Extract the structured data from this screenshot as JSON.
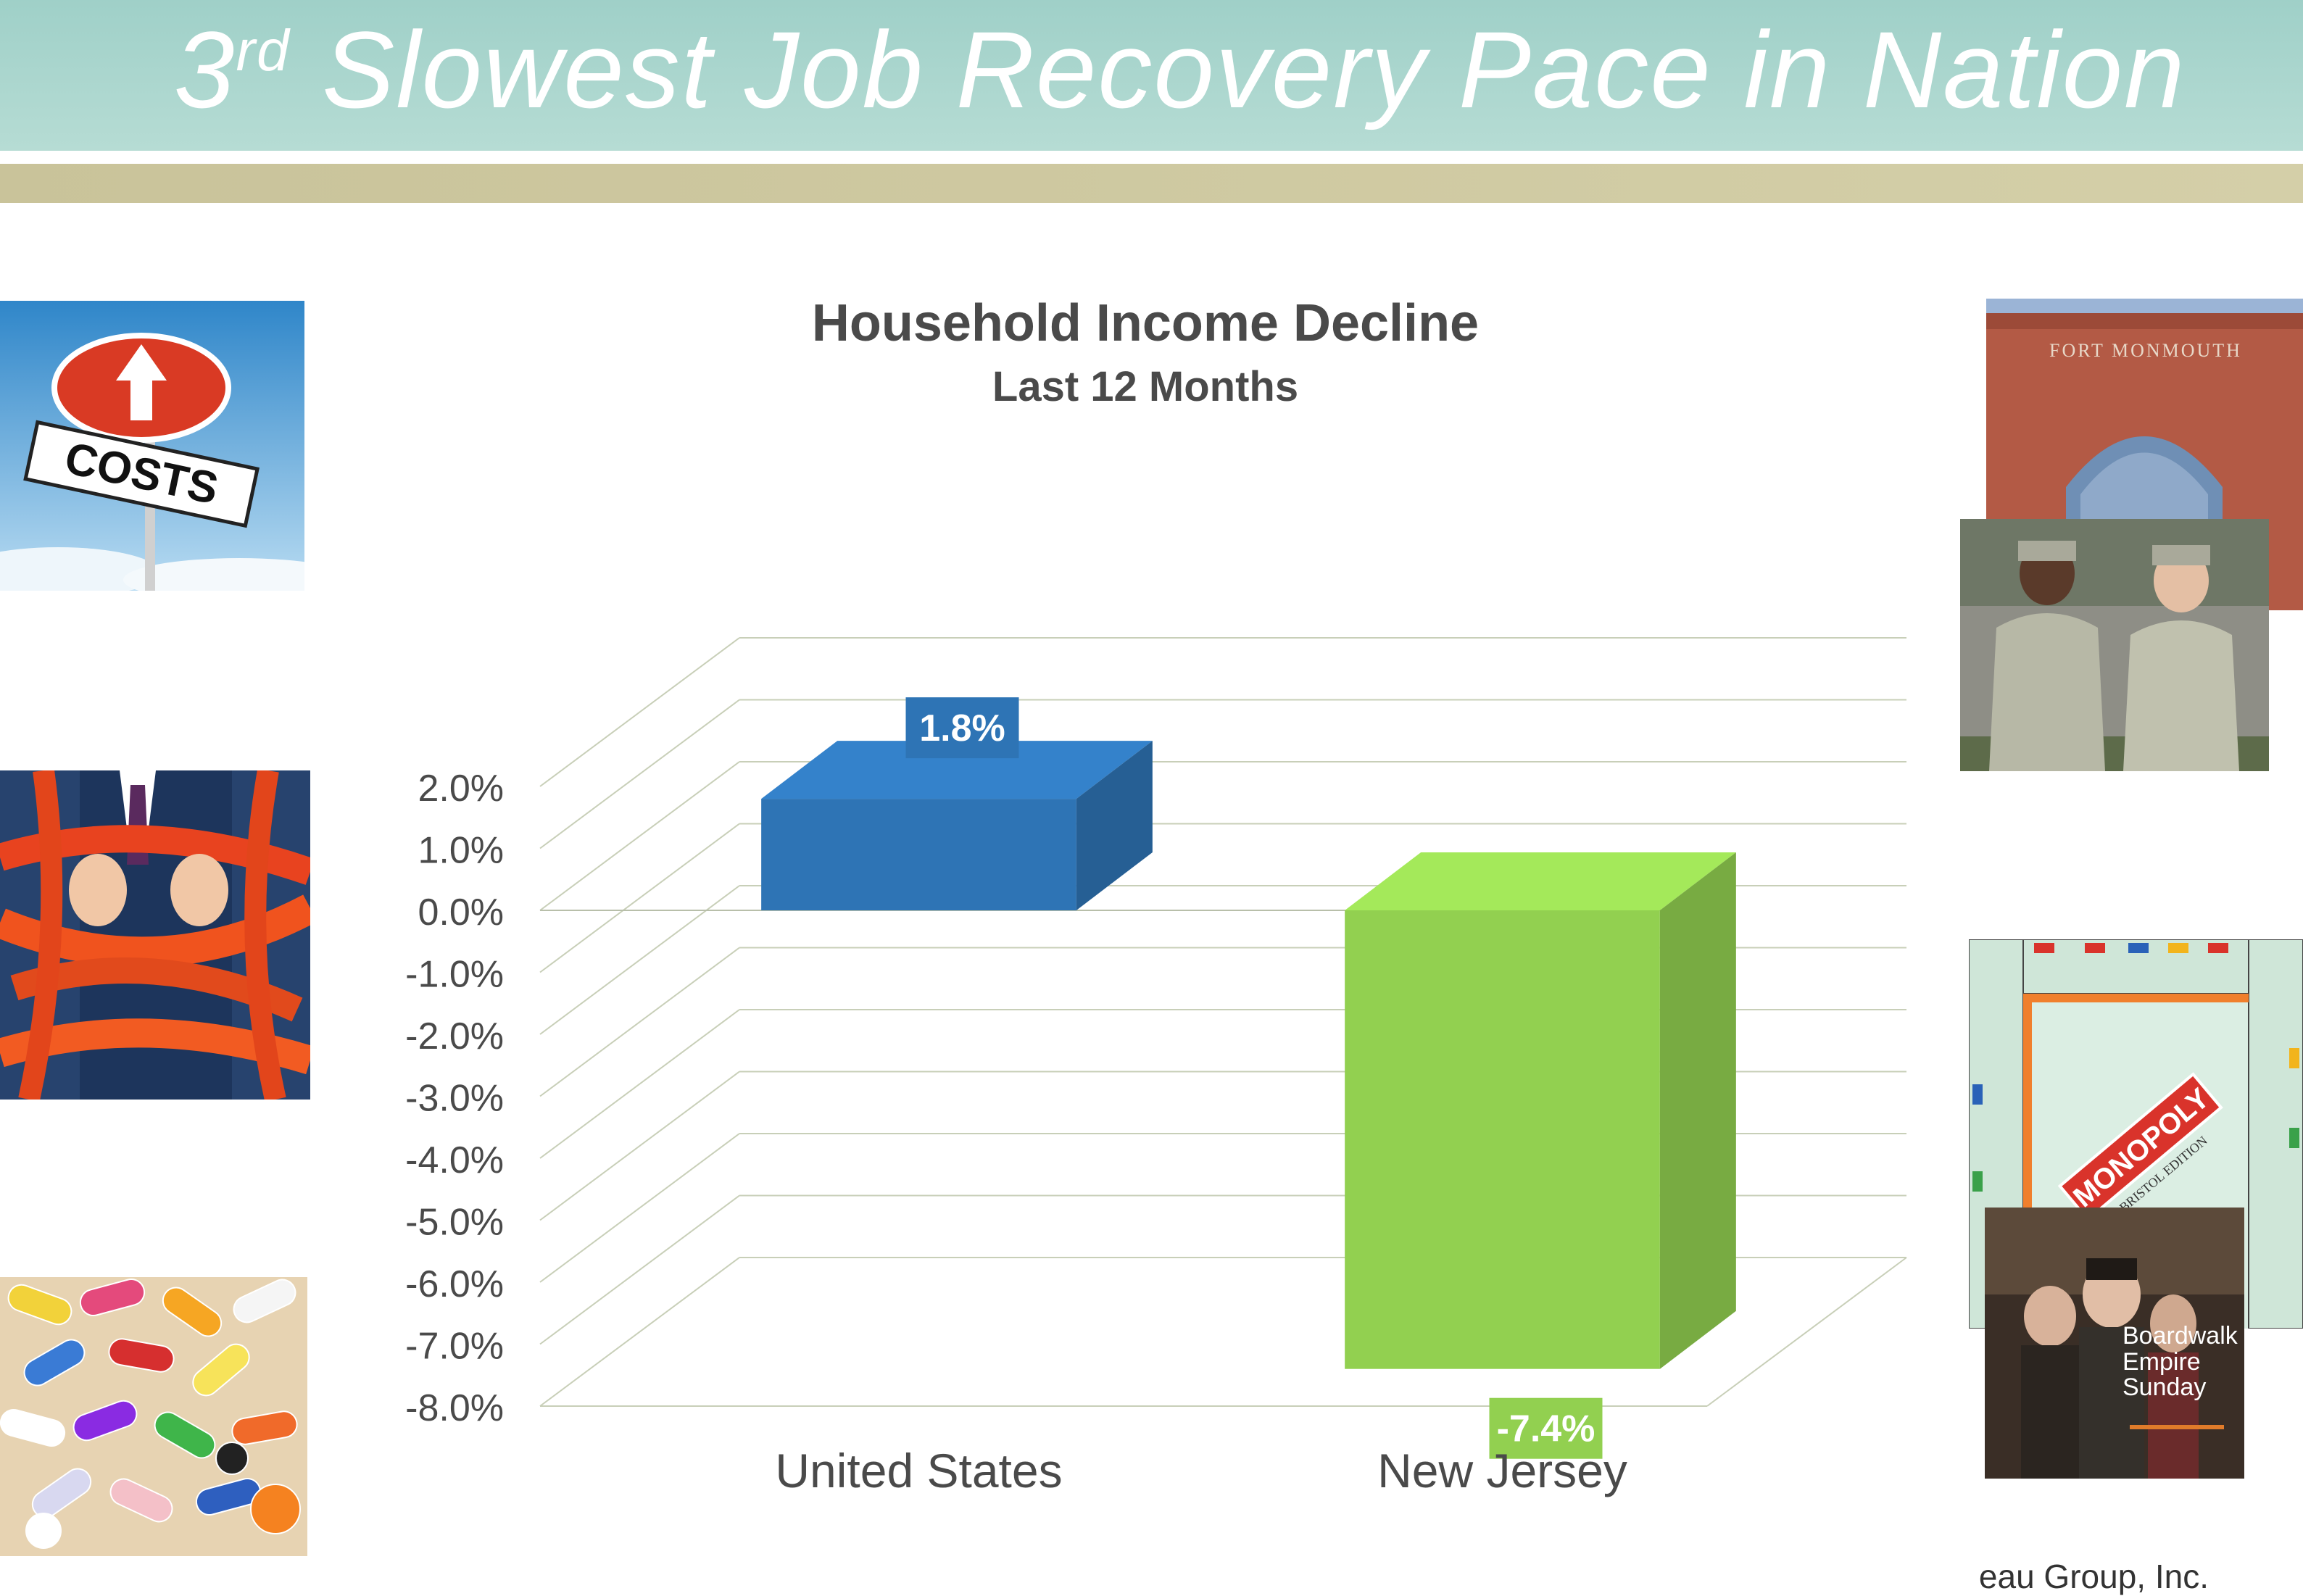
{
  "header": {
    "title_prefix": "3",
    "title_superscript": "rd",
    "title_rest": " Slowest Job Recovery Pace in Nation",
    "colors": {
      "banner": "#b1d9d2",
      "bar": "#cfc9a2"
    }
  },
  "photos": {
    "costs_sign_text": "COSTS",
    "fort_sign_text": "FORT MONMOUTH",
    "game_text": "MONOPOLY",
    "game_sub_text": "BRISTOL EDITION",
    "magazine_text": "Boardwalk Empire Sunday",
    "icons": [
      "costs-sign-photo",
      "tangled-businessman-photo",
      "pills-photo",
      "fort-monmouth-photo",
      "soldiers-photo",
      "monopoly-board-photo",
      "boardwalk-empire-photo"
    ]
  },
  "footer": {
    "text": "eau Group, Inc."
  },
  "chart_data": {
    "type": "bar",
    "title": "Household Income Decline",
    "subtitle": "Last 12 Months",
    "categories": [
      "United States",
      "New Jersey"
    ],
    "values": [
      1.8,
      -7.4
    ],
    "data_labels": [
      "1.8%",
      "-7.4%"
    ],
    "colors": [
      "#2e74b5",
      "#92d050"
    ],
    "ylim": [
      -8.0,
      2.0
    ],
    "yticks": [
      "2.0%",
      "1.0%",
      "0.0%",
      "-1.0%",
      "-2.0%",
      "-3.0%",
      "-4.0%",
      "-5.0%",
      "-6.0%",
      "-7.0%",
      "-8.0%"
    ],
    "grid": true,
    "legend": "none",
    "style": "3d"
  }
}
